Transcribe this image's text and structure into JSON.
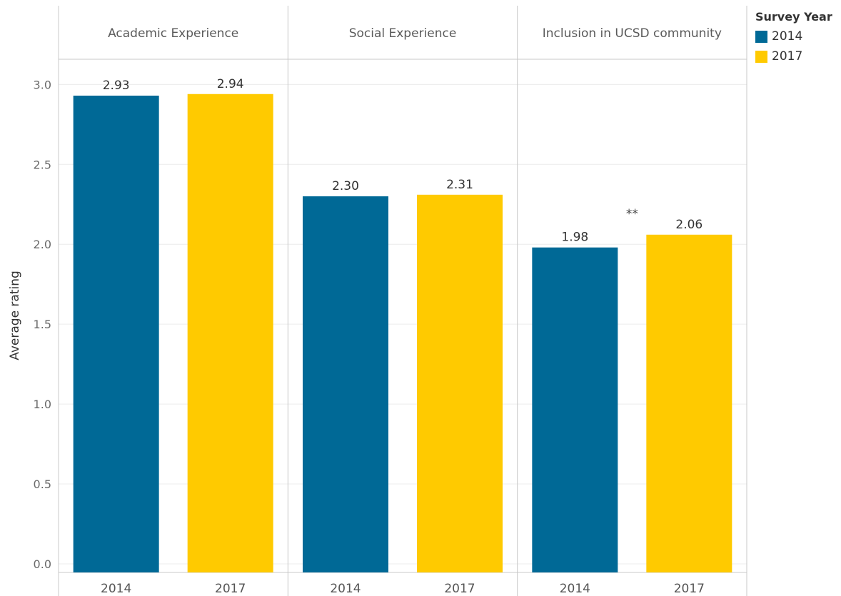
{
  "chart_data": {
    "type": "bar",
    "title": "",
    "ylabel": "Average rating",
    "xlabel": "",
    "ylim": [
      0,
      3.2
    ],
    "yticks": [
      "0.0",
      "0.5",
      "1.0",
      "1.5",
      "2.0",
      "2.5",
      "3.0"
    ],
    "grid": true,
    "legend_placement": "top-right",
    "legend_title": "Survey Year",
    "categories": [
      "2014",
      "2017"
    ],
    "panels": [
      {
        "title": "Academic Experience",
        "values": [
          2.93,
          2.94
        ],
        "labels": [
          "2.93",
          "2.94"
        ],
        "annotation": ""
      },
      {
        "title": "Social Experience",
        "values": [
          2.3,
          2.31
        ],
        "labels": [
          "2.30",
          "2.31"
        ],
        "annotation": ""
      },
      {
        "title": "Inclusion in UCSD community",
        "values": [
          1.98,
          2.06
        ],
        "labels": [
          "1.98",
          "2.06"
        ],
        "annotation": "**"
      }
    ],
    "series": [
      {
        "name": "2014",
        "color": "#006996"
      },
      {
        "name": "2017",
        "color": "#FFCA00"
      }
    ]
  }
}
